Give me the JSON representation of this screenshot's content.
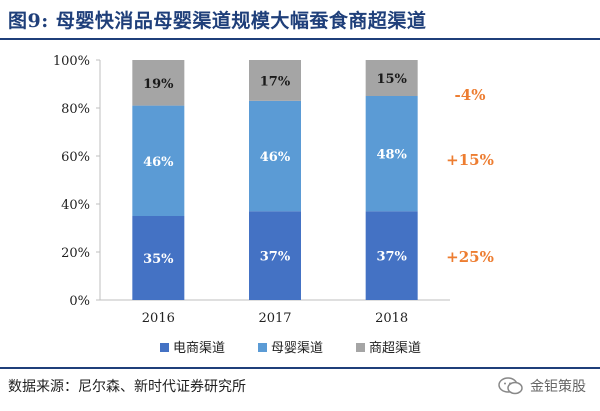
{
  "figure": {
    "title": "图9:   母婴快消品母婴渠道规模大幅蚕食商超渠道",
    "source": "数据来源：尼尔森、新时代证券研究所",
    "watermark": "金钜策股"
  },
  "colors": {
    "title": "#1f3f7a",
    "ecommerce": "#4472c4",
    "maternal": "#5b9bd5",
    "supermarket": "#a5a5a5",
    "change_text": "#ed7d31"
  },
  "chart_data": {
    "type": "bar",
    "stacked": true,
    "categories": [
      "2016",
      "2017",
      "2018"
    ],
    "series": [
      {
        "name": "电商渠道",
        "values": [
          35,
          37,
          37
        ],
        "labels": [
          "35%",
          "37%",
          "37%"
        ]
      },
      {
        "name": "母婴渠道",
        "values": [
          46,
          46,
          48
        ],
        "labels": [
          "46%",
          "46%",
          "48%"
        ]
      },
      {
        "name": "商超渠道",
        "values": [
          19,
          17,
          15
        ],
        "labels": [
          "19%",
          "17%",
          "15%"
        ]
      }
    ],
    "ylim": [
      0,
      100
    ],
    "yticks": [
      "0%",
      "20%",
      "40%",
      "60%",
      "80%",
      "100%"
    ],
    "legend_position": "bottom",
    "annotations": [
      "-4%",
      "+15%",
      "+25%"
    ]
  }
}
